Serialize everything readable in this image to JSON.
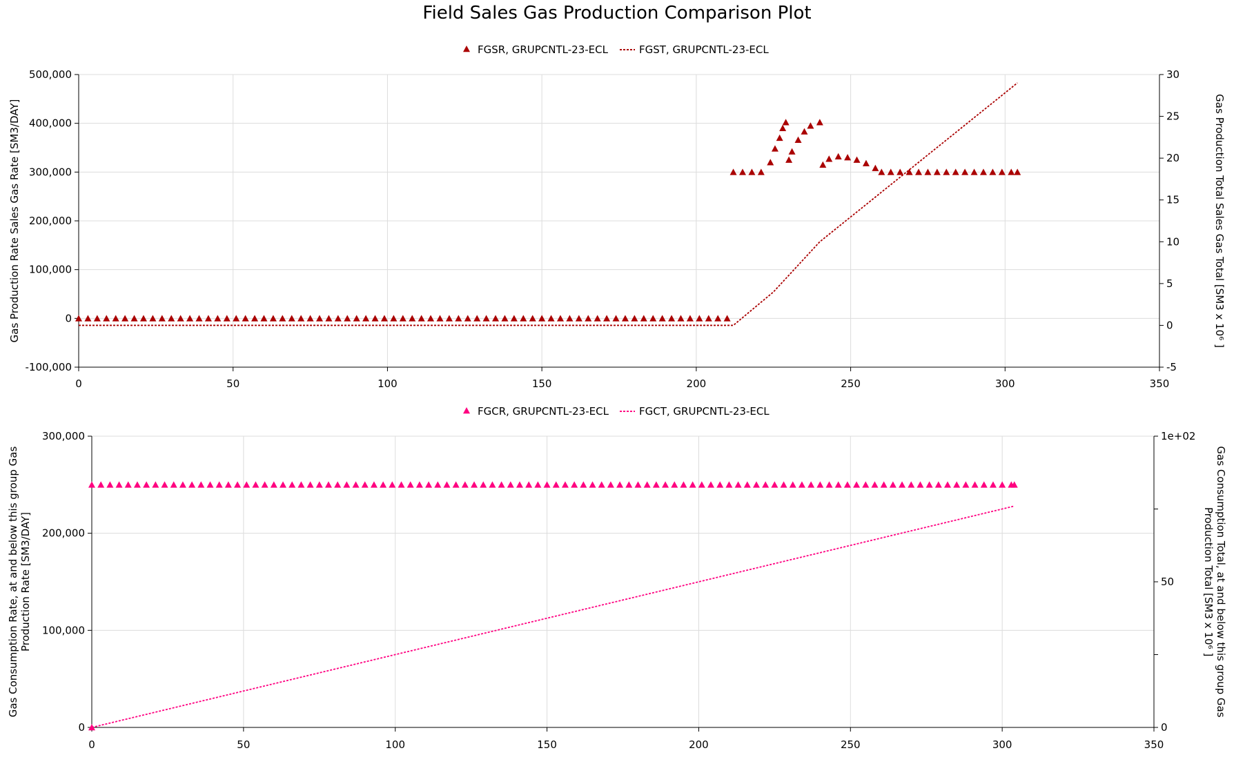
{
  "title": "Field Sales Gas Production Comparison Plot",
  "chart_data": [
    {
      "type": "scatter",
      "legend": "top-center",
      "grid": true,
      "xlim": [
        0,
        350
      ],
      "xticks": [
        0,
        50,
        100,
        150,
        200,
        250,
        300,
        350
      ],
      "ylim": [
        -100000,
        500000
      ],
      "yticks": [
        -100000,
        0,
        100000,
        200000,
        300000,
        400000,
        500000
      ],
      "ytick_labels": [
        "-100,000",
        "0",
        "100,000",
        "200,000",
        "300,000",
        "400,000",
        "500,000"
      ],
      "ylabel": [
        "Gas Production Rate Sales Gas Rate [SM3/DAY]"
      ],
      "y2lim": [
        -5,
        30
      ],
      "y2ticks": [
        -5,
        0,
        5,
        10,
        15,
        20,
        25,
        30
      ],
      "y2tick_labels": [
        "-5",
        "0",
        "5",
        "10",
        "15",
        "20",
        "25",
        "30"
      ],
      "y2label": [
        "Gas Production Total Sales Gas Total [SM3 x 10⁶ ]"
      ],
      "color": "#aa0000",
      "series": [
        {
          "name": "FGSR, GRUPCNTL-23-ECL",
          "kind": "markers",
          "axis": "left",
          "x_start": 0,
          "x_step": 3,
          "x_count": 71,
          "y_const": 0,
          "points": [
            [
              212,
              300000
            ],
            [
              215,
              300000
            ],
            [
              218,
              300000
            ],
            [
              221,
              300000
            ],
            [
              224,
              320000
            ],
            [
              225.5,
              348000
            ],
            [
              227,
              370000
            ],
            [
              228,
              390000
            ],
            [
              229,
              402000
            ],
            [
              230,
              325000
            ],
            [
              231,
              342000
            ],
            [
              233,
              366000
            ],
            [
              235,
              383000
            ],
            [
              237,
              395000
            ],
            [
              240,
              402000
            ],
            [
              241,
              315000
            ],
            [
              243,
              327000
            ],
            [
              246,
              332000
            ],
            [
              249,
              330000
            ],
            [
              252,
              325000
            ],
            [
              255,
              318000
            ],
            [
              258,
              308000
            ],
            [
              260,
              300000
            ],
            [
              263,
              300000
            ],
            [
              266,
              300000
            ],
            [
              269,
              300000
            ],
            [
              272,
              300000
            ],
            [
              275,
              300000
            ],
            [
              278,
              300000
            ],
            [
              281,
              300000
            ],
            [
              284,
              300000
            ],
            [
              287,
              300000
            ],
            [
              290,
              300000
            ],
            [
              293,
              300000
            ],
            [
              296,
              300000
            ],
            [
              299,
              300000
            ],
            [
              302,
              300000
            ],
            [
              304,
              300000
            ]
          ]
        },
        {
          "name": "FGST, GRUPCNTL-23-ECL",
          "kind": "line",
          "axis": "right",
          "points": [
            [
              0,
              0
            ],
            [
              212,
              0
            ],
            [
              225,
              4
            ],
            [
              240,
              10
            ],
            [
              304,
              29
            ]
          ]
        }
      ]
    },
    {
      "type": "scatter",
      "legend": "top-center",
      "grid": true,
      "xlim": [
        0,
        350
      ],
      "xticks": [
        0,
        50,
        100,
        150,
        200,
        250,
        300,
        350
      ],
      "ylim": [
        0,
        300000
      ],
      "yticks": [
        0,
        100000,
        200000,
        300000
      ],
      "ytick_labels": [
        "0",
        "100,000",
        "200,000",
        "300,000"
      ],
      "ylabel": [
        "Gas Consumption Rate, at and below this group Gas",
        "Production Rate [SM3/DAY]"
      ],
      "y2lim": [
        0,
        100
      ],
      "y2ticks": [
        0,
        50,
        100
      ],
      "y2tick_labels": [
        "0",
        "50",
        "1e+02"
      ],
      "y2minor": [
        25,
        75
      ],
      "y2label": [
        "Gas Consumption Total, at and below this group Gas",
        "Production Total [SM3 x 10⁶ ]"
      ],
      "color": "#ff0080",
      "series": [
        {
          "name": "FGCR, GRUPCNTL-23-ECL",
          "kind": "markers",
          "axis": "left",
          "x_start": 0,
          "x_step": 3,
          "x_count": 102,
          "y_const": 250000,
          "points": [
            [
              0,
              0
            ],
            [
              304,
              250000
            ]
          ]
        },
        {
          "name": "FGCT, GRUPCNTL-23-ECL",
          "kind": "line",
          "axis": "right",
          "points": [
            [
              0,
              0
            ],
            [
              304,
              76
            ]
          ]
        }
      ]
    }
  ]
}
